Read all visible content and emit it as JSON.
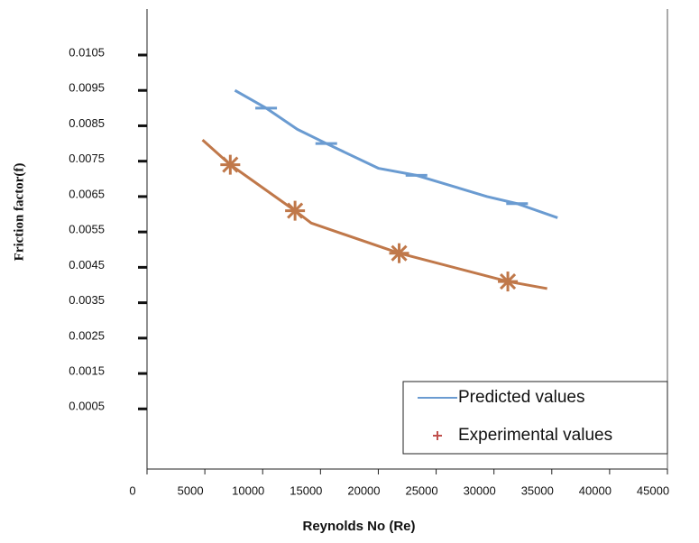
{
  "chart_data": {
    "type": "line",
    "x_label": "Reynolds No (Re)",
    "y_label": "Friction factor(f)",
    "xlim": [
      0,
      45000
    ],
    "xticks": [
      0,
      5000,
      10000,
      15000,
      20000,
      25000,
      30000,
      35000,
      40000,
      45000
    ],
    "ylim": [
      -0.0012,
      0.0118
    ],
    "yticks": [
      0.0005,
      0.0015,
      0.0025,
      0.0035,
      0.0045,
      0.0055,
      0.0065,
      0.0075,
      0.0085,
      0.0095,
      0.0105
    ],
    "series": [
      {
        "name": "Predicted values",
        "color": "#6a9bd1",
        "marker": "dash",
        "x": [
          7600,
          10300,
          13000,
          15500,
          20000,
          23300,
          29400,
          32000,
          35500
        ],
        "values": [
          0.0095,
          0.009,
          0.0084,
          0.008,
          0.0073,
          0.0071,
          0.0065,
          0.0063,
          0.0059
        ],
        "marker_x": [
          10300,
          15500,
          23300,
          32000
        ],
        "marker_values": [
          0.009,
          0.008,
          0.0071,
          0.0063
        ]
      },
      {
        "name": "Experimental values",
        "color": "#c0784a",
        "marker": "star",
        "x": [
          4800,
          7200,
          12800,
          14200,
          21800,
          31200,
          34600
        ],
        "values": [
          0.0081,
          0.0074,
          0.0061,
          0.00575,
          0.0049,
          0.0041,
          0.0039
        ],
        "marker_x": [
          7200,
          12800,
          21800,
          31200
        ],
        "marker_values": [
          0.0074,
          0.0061,
          0.0049,
          0.0041
        ]
      }
    ]
  }
}
